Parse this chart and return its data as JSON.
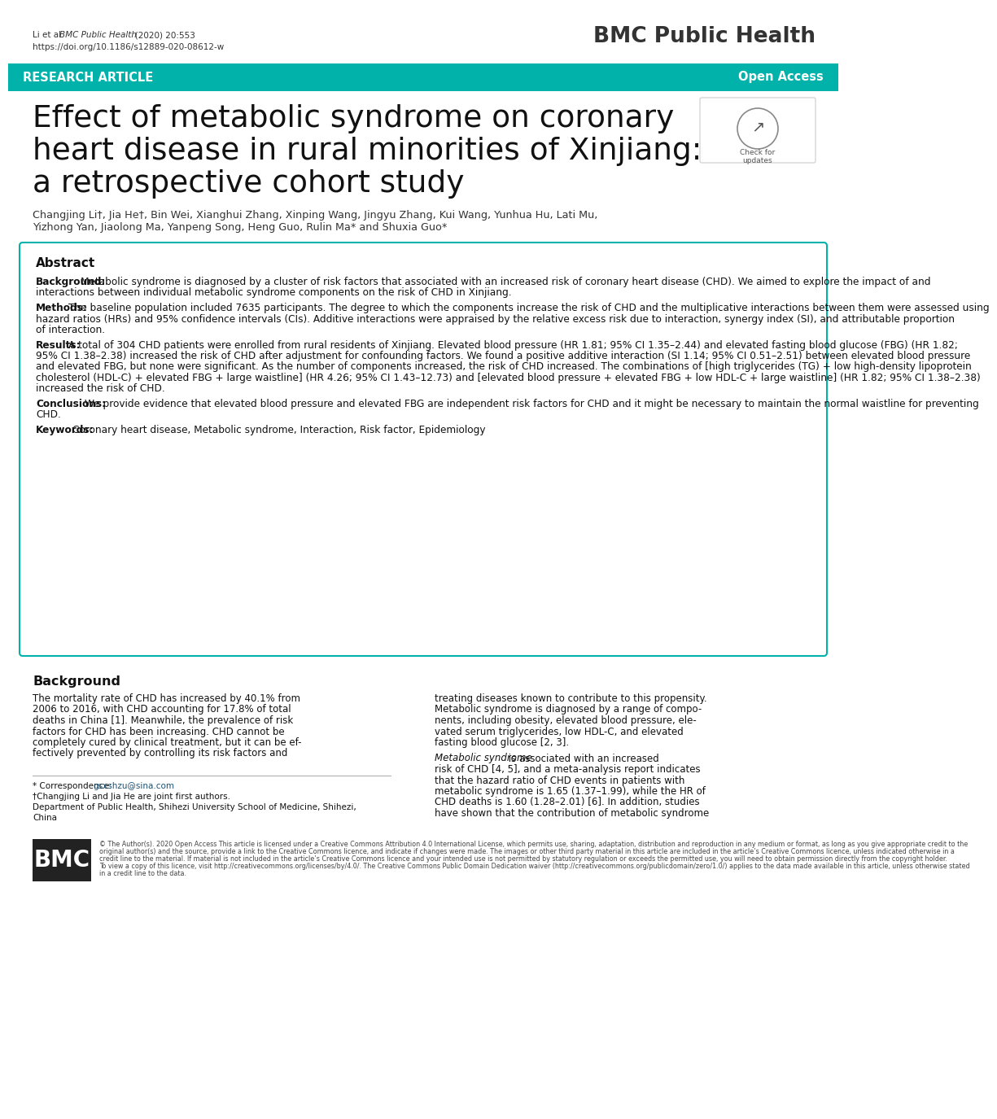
{
  "bg_color": "#ffffff",
  "teal_color": "#00B2A9",
  "header_citation_normal": "Li et al. ",
  "header_citation_italic": "BMC Public Health",
  "header_citation_year": "   (2020) 20:553",
  "header_doi": "https://doi.org/10.1186/s12889-020-08612-w",
  "journal_name": "BMC Public Health",
  "banner_text_left": "RESEARCH ARTICLE",
  "banner_text_right": "Open Access",
  "title_line1": "Effect of metabolic syndrome on coronary",
  "title_line2": "heart disease in rural minorities of Xinjiang:",
  "title_line3": "a retrospective cohort study",
  "authors_line1": "Changjing Li†, Jia He†, Bin Wei, Xianghui Zhang, Xinping Wang, Jingyu Zhang, Kui Wang, Yunhua Hu, Lati Mu,",
  "authors_line2": "Yizhong Yan, Jiaolong Ma, Yanpeng Song, Heng Guo, Rulin Ma* and Shuxia Guo*",
  "abstract_title": "Abstract",
  "background_label": "Background:",
  "background_text": "Metabolic syndrome is diagnosed by a cluster of risk factors that associated with an increased risk of coronary heart disease (CHD). We aimed to explore the impact of and interactions between individual metabolic syndrome components on the risk of CHD in Xinjiang.",
  "methods_label": "Methods:",
  "methods_text": "The baseline population included 7635 participants. The degree to which the components increase the risk of CHD and the multiplicative interactions between them were assessed using hazard ratios (HRs) and 95% confidence intervals (CIs). Additive interactions were appraised by the relative excess risk due to interaction, synergy index (SI), and attributable proportion of interaction.",
  "results_label": "Results:",
  "results_text": "A total of 304 CHD patients were enrolled from rural residents of Xinjiang. Elevated blood pressure (HR 1.81; 95% CI 1.35–2.44) and elevated fasting blood glucose (FBG) (HR 1.82; 95% CI 1.38–2.38) increased the risk of CHD after adjustment for confounding factors. We found a positive additive interaction (SI 1.14; 95% CI 0.51–2.51) between elevated blood pressure and elevated FBG, but none were significant. As the number of components increased, the risk of CHD increased. The combinations of [high triglycerides (TG) + low high-density lipoprotein cholesterol (HDL-C) + elevated FBG + large waistline] (HR 4.26; 95% CI 1.43–12.73) and [elevated blood pressure + elevated FBG + low HDL-C + large waistline] (HR 1.82; 95% CI 1.38–2.38) increased the risk of CHD.",
  "conclusions_label": "Conclusions:",
  "conclusions_text": "We provide evidence that elevated blood pressure and elevated FBG are independent risk factors for CHD and it might be necessary to maintain the normal waistline for preventing CHD.",
  "keywords_label": "Keywords:",
  "keywords_text": "Coronary heart disease, Metabolic syndrome, Interaction, Risk factor, Epidemiology",
  "background_section_title": "Background",
  "left_col_lines": [
    "The mortality rate of CHD has increased by 40.1% from",
    "2006 to 2016, with CHD accounting for 17.8% of total",
    "deaths in China [1]. Meanwhile, the prevalence of risk",
    "factors for CHD has been increasing. CHD cannot be",
    "completely cured by clinical treatment, but it can be ef-",
    "fectively prevented by controlling its risk factors and"
  ],
  "right_col_para1_lines": [
    "treating diseases known to contribute to this propensity.",
    "Metabolic syndrome is diagnosed by a range of compo-",
    "nents, including obesity, elevated blood pressure, ele-",
    "vated serum triglycerides, low HDL-C, and elevated",
    "fasting blood glucose [2, 3]."
  ],
  "right_col_para2_lines": [
    "Metabolic syndrome is associated with an increased",
    "risk of CHD [4, 5], and a meta-analysis report indicates",
    "that the hazard ratio of CHD events in patients with",
    "metabolic syndrome is 1.65 (1.37–1.99), while the HR of",
    "CHD deaths is 1.60 (1.28–2.01) [6]. In addition, studies",
    "have shown that the contribution of metabolic syndrome"
  ],
  "footnote_correspondence_label": "* Correspondence: ",
  "footnote_correspondence_link": "gsxshzu@sina.com",
  "footnote_dagger": "†Changjing Li and Jia He are joint first authors.",
  "footnote_dept1": "Department of Public Health, Shihezi University School of Medicine, Shihezi,",
  "footnote_dept2": "China",
  "bmc_logo_text": "BMC",
  "copyright_text": "© The Author(s). 2020 Open Access This article is licensed under a Creative Commons Attribution 4.0 International License, which permits use, sharing, adaptation, distribution and reproduction in any medium or format, as long as you give appropriate credit to the original author(s) and the source, provide a link to the Creative Commons licence, and indicate if changes were made. The images or other third party material in this article are included in the article’s Creative Commons licence, unless indicated otherwise in a credit line to the material. If material is not included in the article’s Creative Commons licence and your intended use is not permitted by statutory regulation or exceeds the permitted use, you will need to obtain permission directly from the copyright holder. To view a copy of this licence, visit http://creativecommons.org/licenses/by/4.0/. The Creative Commons Public Domain Dedication waiver (http://creativecommons.org/publicdomain/zero/1.0/) applies to the data made available in this article, unless otherwise stated in a credit line to the data."
}
